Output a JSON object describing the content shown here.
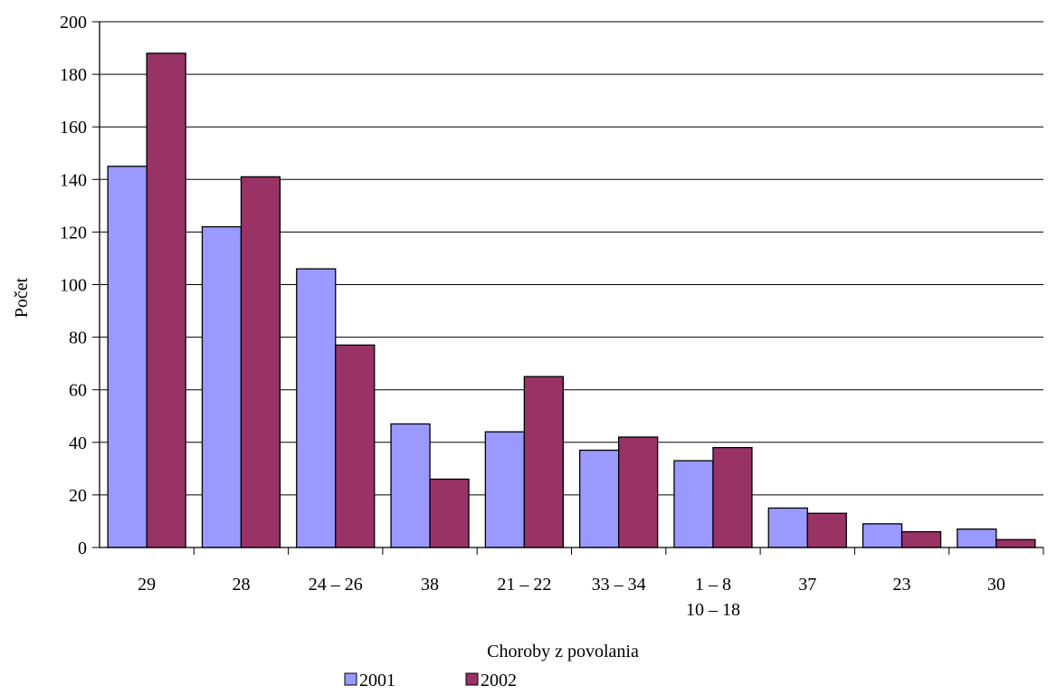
{
  "chart_data": {
    "type": "bar",
    "title": "",
    "xlabel": "Choroby z povolania",
    "ylabel": "Počet",
    "ylim": [
      0,
      200
    ],
    "yticks": [
      "0",
      "20",
      "40",
      "60",
      "80",
      "100",
      "120",
      "140",
      "160",
      "180",
      "200"
    ],
    "grid": true,
    "legend_position": "bottom",
    "categories": [
      "29",
      "28",
      "24 – 26",
      "38",
      "21 – 22",
      "33 – 34",
      "1 – 8\n10 – 18",
      "37",
      "23",
      "30"
    ],
    "series": [
      {
        "name": "2001",
        "color": "#9999ff",
        "values": [
          145,
          122,
          106,
          47,
          44,
          37,
          33,
          15,
          9,
          7
        ]
      },
      {
        "name": "2002",
        "color": "#993366",
        "values": [
          188,
          141,
          77,
          26,
          65,
          42,
          38,
          13,
          6,
          3
        ]
      }
    ]
  }
}
